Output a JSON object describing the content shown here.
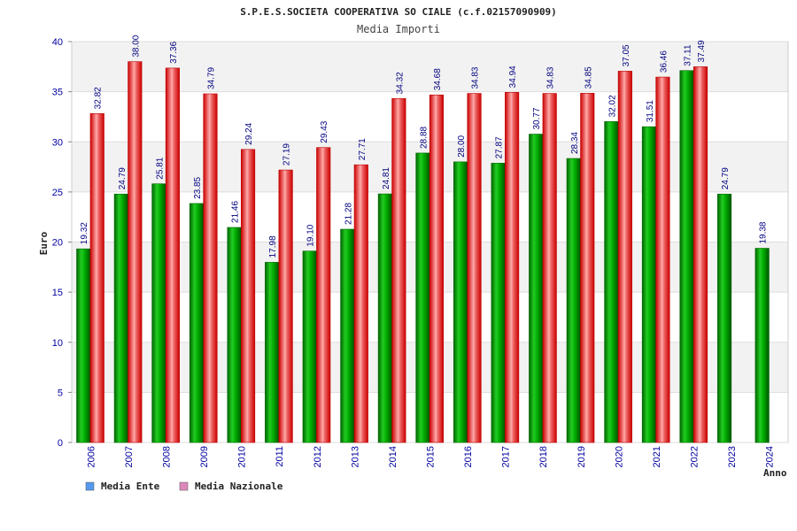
{
  "chart_data": {
    "type": "bar",
    "title": "S.P.E.S.SOCIETA COOPERATIVA SO CIALE (c.f.02157090909)",
    "subtitle": "Media Importi",
    "ylabel": "Euro",
    "xlabel": "Anno",
    "ylim": [
      0,
      40
    ],
    "yticks": [
      0,
      5,
      10,
      15,
      20,
      25,
      30,
      35,
      40
    ],
    "grid": true,
    "legend_position": "bottom-left",
    "categories": [
      "2006",
      "2007",
      "2008",
      "2009",
      "2010",
      "2011",
      "2012",
      "2013",
      "2014",
      "2015",
      "2016",
      "2017",
      "2018",
      "2019",
      "2020",
      "2021",
      "2022",
      "2023",
      "2024"
    ],
    "series": [
      {
        "name": "Media Ente",
        "color": "#00aa00",
        "legend_color": "#5599ee",
        "values": [
          19.32,
          24.79,
          25.81,
          23.85,
          21.46,
          17.98,
          19.1,
          21.28,
          24.81,
          28.88,
          28.0,
          27.87,
          30.77,
          28.34,
          32.02,
          31.51,
          37.11,
          24.79,
          19.38
        ],
        "labels": [
          "19.32",
          "24.79",
          "25.81",
          "23.85",
          "21.46",
          "17.98",
          "19.10",
          "21.28",
          "24.81",
          "28.88",
          "28.00",
          "27.87",
          "30.77",
          "28.34",
          "32.02",
          "31.51",
          "37.11",
          "24.79",
          "19.38"
        ]
      },
      {
        "name": "Media Nazionale",
        "color": "#ee2222",
        "legend_color": "#dd88bb",
        "values": [
          32.82,
          38.0,
          37.36,
          34.79,
          29.24,
          27.19,
          29.43,
          27.71,
          34.32,
          34.68,
          34.83,
          34.94,
          34.83,
          34.85,
          37.05,
          36.46,
          37.49,
          null,
          null
        ],
        "labels": [
          "32.82",
          "38.00",
          "37.36",
          "34.79",
          "29.24",
          "27.19",
          "29.43",
          "27.71",
          "34.32",
          "34.68",
          "34.83",
          "34.94",
          "34.83",
          "34.85",
          "37.05",
          "36.46",
          "37.49",
          "",
          ""
        ]
      }
    ]
  }
}
